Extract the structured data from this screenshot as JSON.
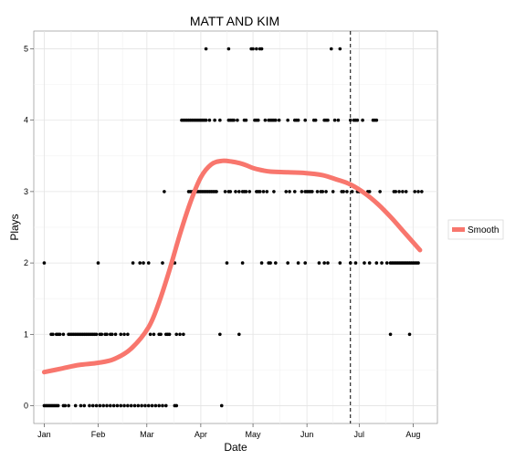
{
  "chart_data": {
    "type": "scatter",
    "title": "MATT AND KIM",
    "xlabel": "Date",
    "ylabel": "Plays",
    "x_unit": "day of year",
    "xlim": [
      -6,
      226
    ],
    "ylim": [
      -0.25,
      5.25
    ],
    "x_ticks": [
      {
        "label": "Jan",
        "day": 0
      },
      {
        "label": "Feb",
        "day": 31
      },
      {
        "label": "Mar",
        "day": 59
      },
      {
        "label": "Apr",
        "day": 90
      },
      {
        "label": "May",
        "day": 120
      },
      {
        "label": "Jun",
        "day": 151
      },
      {
        "label": "Jul",
        "day": 181
      },
      {
        "label": "Aug",
        "day": 212
      }
    ],
    "y_ticks": [
      0,
      1,
      2,
      3,
      4,
      5
    ],
    "grid": true,
    "vline": {
      "day": 176,
      "style": "dashed"
    },
    "points": {
      "0": [
        0,
        1,
        2,
        3,
        4,
        5,
        6,
        7,
        8,
        11,
        12,
        14,
        18,
        21,
        23,
        26,
        28,
        30,
        32,
        34,
        36,
        38,
        40,
        42,
        44,
        46,
        48,
        50,
        52,
        54,
        56,
        58,
        60,
        62,
        64,
        66,
        68,
        70,
        75,
        76,
        102
      ],
      "1": [
        4,
        5,
        7,
        8,
        9,
        11,
        14,
        15,
        16,
        17,
        18,
        19,
        20,
        21,
        22,
        23,
        24,
        25,
        26,
        27,
        28,
        29,
        30,
        32,
        33,
        35,
        36,
        38,
        39,
        41,
        44,
        46,
        48,
        61,
        63,
        66,
        67,
        70,
        71,
        72,
        76,
        78,
        80,
        101,
        112,
        199,
        210
      ],
      "2": [
        0,
        31,
        51,
        55,
        57,
        60,
        68,
        75,
        105,
        114,
        125,
        129,
        130,
        133,
        140,
        146,
        150,
        158,
        161,
        163,
        170,
        176,
        179,
        184,
        187,
        191,
        194,
        197,
        199,
        200,
        201,
        202,
        203,
        204,
        205,
        206,
        207,
        208,
        209,
        210,
        211,
        212,
        213,
        214,
        215
      ],
      "3": [
        69,
        83,
        84,
        85,
        86,
        87,
        88,
        89,
        90,
        91,
        92,
        93,
        94,
        95,
        96,
        97,
        98,
        99,
        104,
        106,
        107,
        110,
        112,
        114,
        115,
        116,
        118,
        122,
        123,
        124,
        126,
        128,
        132,
        139,
        141,
        144,
        148,
        150,
        151,
        152,
        153,
        154,
        157,
        159,
        160,
        162,
        166,
        171,
        172,
        174,
        177,
        180,
        181,
        183,
        186,
        187,
        193,
        201,
        202,
        204,
        206,
        208,
        213,
        215,
        217
      ],
      "4": [
        79,
        80,
        81,
        82,
        83,
        84,
        85,
        86,
        87,
        88,
        89,
        90,
        91,
        92,
        93,
        95,
        98,
        101,
        106,
        107,
        108,
        109,
        111,
        115,
        116,
        121,
        122,
        123,
        127,
        129,
        130,
        131,
        132,
        133,
        135,
        140,
        144,
        145,
        146,
        150,
        155,
        156,
        161,
        162,
        163,
        167,
        169,
        176,
        178,
        179,
        180,
        183,
        189,
        190,
        191
      ],
      "5": [
        93,
        106,
        119,
        120,
        122,
        124,
        125,
        165,
        170
      ]
    },
    "series": [
      {
        "name": "Smooth",
        "color": "#f8766d",
        "x": [
          0,
          10,
          20,
          31,
          40,
          50,
          60,
          66,
          72,
          78,
          84,
          90,
          96,
          102,
          108,
          112,
          116,
          120,
          125,
          130,
          140,
          150,
          160,
          168,
          176,
          184,
          192,
          200,
          208,
          216
        ],
        "y": [
          0.47,
          0.52,
          0.57,
          0.6,
          0.65,
          0.8,
          1.1,
          1.45,
          1.9,
          2.4,
          2.85,
          3.2,
          3.38,
          3.43,
          3.42,
          3.4,
          3.37,
          3.33,
          3.3,
          3.28,
          3.27,
          3.26,
          3.23,
          3.17,
          3.1,
          2.98,
          2.82,
          2.62,
          2.4,
          2.18
        ]
      }
    ],
    "legend": {
      "position": "right",
      "entries": [
        {
          "label": "Smooth",
          "color": "#f8766d"
        }
      ]
    }
  }
}
